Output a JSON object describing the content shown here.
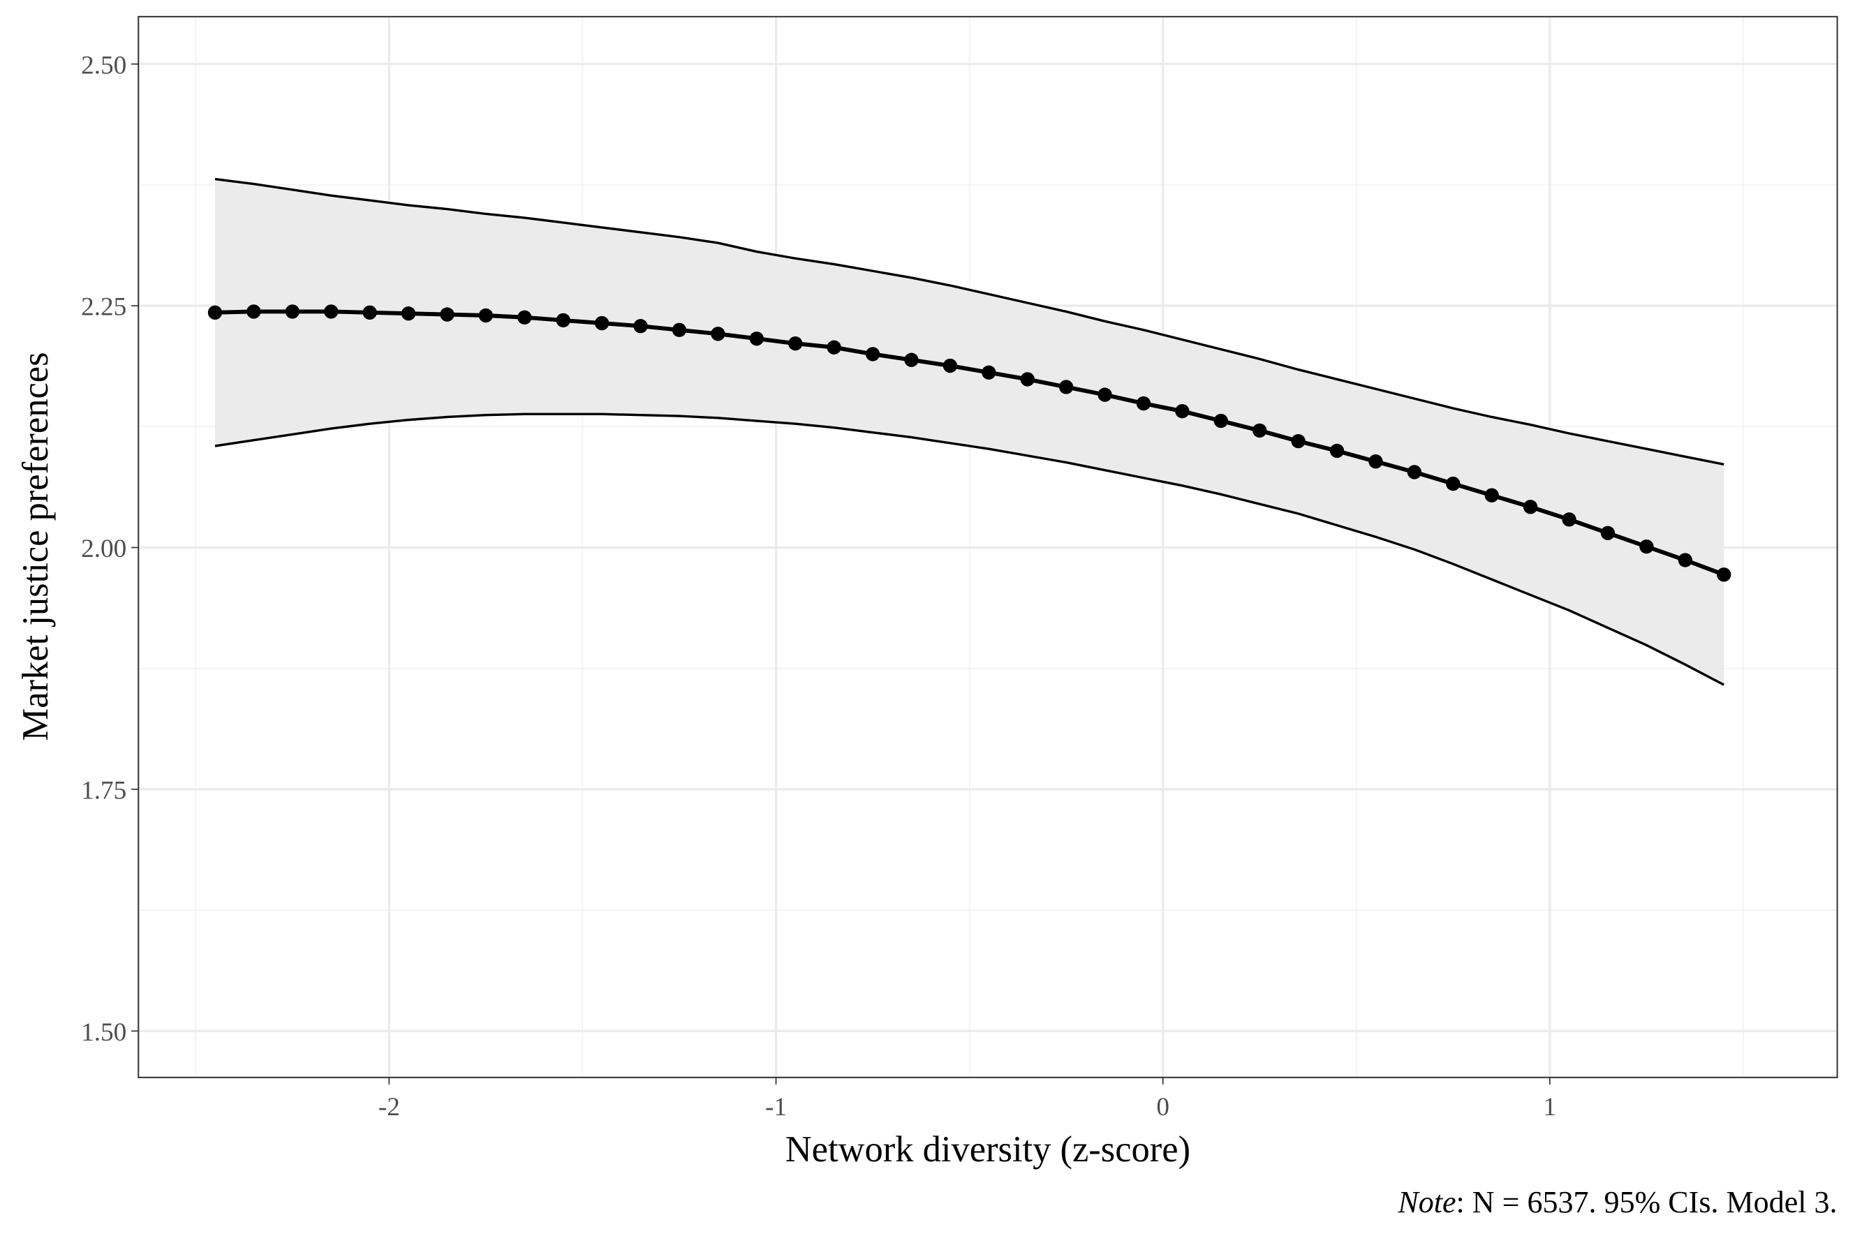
{
  "chart_data": {
    "type": "line",
    "x_label": "Network diversity (z-score)",
    "y_label": "Market justice preferences",
    "note": {
      "italic": "Note",
      "text": ": N = 6537. 95% CIs. Model 3."
    },
    "x": [
      -2.45,
      -2.35,
      -2.25,
      -2.15,
      -2.05,
      -1.95,
      -1.85,
      -1.75,
      -1.65,
      -1.55,
      -1.45,
      -1.35,
      -1.25,
      -1.15,
      -1.05,
      -0.95,
      -0.85,
      -0.75,
      -0.65,
      -0.55,
      -0.45,
      -0.35,
      -0.25,
      -0.15,
      -0.05,
      0.05,
      0.15,
      0.25,
      0.35,
      0.45,
      0.55,
      0.65,
      0.75,
      0.85,
      0.95,
      1.05,
      1.15,
      1.25,
      1.35,
      1.45
    ],
    "values": [
      2.243,
      2.244,
      2.244,
      2.244,
      2.243,
      2.242,
      2.241,
      2.24,
      2.238,
      2.235,
      2.232,
      2.229,
      2.225,
      2.221,
      2.216,
      2.211,
      2.207,
      2.2,
      2.194,
      2.188,
      2.181,
      2.174,
      2.166,
      2.158,
      2.149,
      2.141,
      2.131,
      2.121,
      2.11,
      2.1,
      2.089,
      2.078,
      2.066,
      2.054,
      2.042,
      2.029,
      2.015,
      2.001,
      1.987,
      1.972
    ],
    "ci_upper": [
      2.381,
      2.376,
      2.37,
      2.364,
      2.359,
      2.354,
      2.35,
      2.345,
      2.341,
      2.336,
      2.331,
      2.326,
      2.321,
      2.315,
      2.306,
      2.299,
      2.293,
      2.286,
      2.279,
      2.271,
      2.262,
      2.253,
      2.244,
      2.234,
      2.225,
      2.215,
      2.205,
      2.195,
      2.184,
      2.174,
      2.164,
      2.154,
      2.144,
      2.135,
      2.127,
      2.118,
      2.11,
      2.102,
      2.094,
      2.086
    ],
    "ci_lower": [
      2.105,
      2.111,
      2.117,
      2.123,
      2.128,
      2.132,
      2.135,
      2.137,
      2.138,
      2.138,
      2.138,
      2.137,
      2.136,
      2.134,
      2.131,
      2.128,
      2.124,
      2.119,
      2.114,
      2.108,
      2.102,
      2.095,
      2.088,
      2.08,
      2.072,
      2.064,
      2.055,
      2.045,
      2.035,
      2.023,
      2.011,
      1.998,
      1.983,
      1.967,
      1.951,
      1.935,
      1.917,
      1.899,
      1.879,
      1.858
    ],
    "color": "#000000",
    "band_color": "#ebebeb",
    "xlim": [
      -2.648,
      1.743
    ],
    "ylim": [
      1.452,
      2.549
    ],
    "xticks": [
      -2,
      -1,
      0,
      1
    ],
    "yticks": [
      {
        "value": 1.5,
        "label": "1.50"
      },
      {
        "value": 1.75,
        "label": "1.75"
      },
      {
        "value": 2.0,
        "label": "2.00"
      },
      {
        "value": 2.25,
        "label": "2.25"
      },
      {
        "value": 2.5,
        "label": "2.50"
      }
    ],
    "grid": true
  }
}
